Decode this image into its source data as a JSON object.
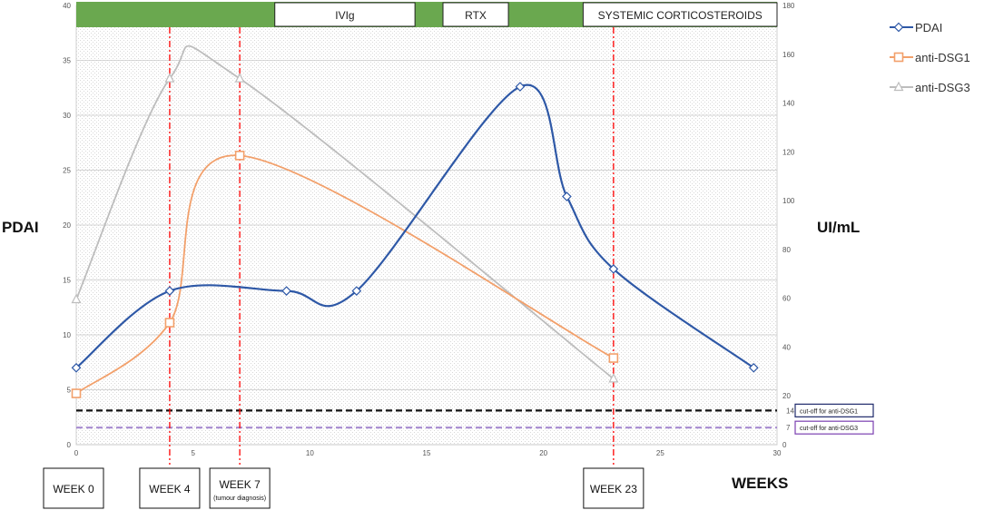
{
  "chart_data": {
    "type": "line",
    "xlabel": "WEEKS",
    "ylabel_left": "PDAI",
    "ylabel_right": "UI/mL",
    "xlim": [
      0,
      30
    ],
    "xticks": [
      0,
      5,
      10,
      15,
      20,
      25,
      30
    ],
    "ylim_left": [
      0,
      40
    ],
    "yticks_left": [
      0,
      5,
      10,
      15,
      20,
      25,
      30,
      35,
      40
    ],
    "ylim_right": [
      0,
      180
    ],
    "yticks_right": [
      0,
      20,
      40,
      60,
      80,
      100,
      120,
      140,
      160,
      180
    ],
    "grid": true,
    "legend_position": "right",
    "series": [
      {
        "name": "PDAI",
        "axis": "left",
        "marker": "diamond",
        "color": "#2e58a6",
        "points": [
          [
            0,
            7
          ],
          [
            4,
            14
          ],
          [
            9,
            14
          ],
          [
            12,
            14
          ],
          [
            19,
            32.6
          ],
          [
            21,
            22.6
          ],
          [
            23,
            16
          ],
          [
            29,
            7
          ]
        ]
      },
      {
        "name": "anti-DSG1",
        "axis": "right",
        "marker": "square",
        "color": "#f2a06b",
        "points": [
          [
            0,
            21
          ],
          [
            4,
            50
          ],
          [
            7,
            118.5
          ],
          [
            23,
            35.5
          ]
        ]
      },
      {
        "name": "anti-DSG3",
        "axis": "right",
        "marker": "triangle",
        "color": "#bdbdbd",
        "points": [
          [
            0,
            59.5
          ],
          [
            4,
            150
          ],
          [
            7,
            150
          ],
          [
            23,
            27
          ]
        ]
      }
    ],
    "cutoffs": [
      {
        "value": 14,
        "label": "cut-off for anti-DSG1",
        "tick": "14",
        "color": "#111111",
        "box_color": "#1f2a6b"
      },
      {
        "value": 7,
        "label": "cut-off for anti-DSG3",
        "tick": "7",
        "color": "#a78bd0",
        "box_color": "#7b3fb0"
      }
    ],
    "week_markers": [
      {
        "x": 0,
        "label": "WEEK 0",
        "sub": "",
        "vline": false
      },
      {
        "x": 4,
        "label": "WEEK 4",
        "sub": "",
        "vline": true
      },
      {
        "x": 7,
        "label": "WEEK 7",
        "sub": "(tumour diagnosis)",
        "vline": true
      },
      {
        "x": 23,
        "label": "WEEK 23",
        "sub": "",
        "vline": true
      }
    ],
    "treatments": [
      {
        "label": "IVIg",
        "from": 8.5,
        "to": 14.5
      },
      {
        "label": "RTX",
        "from": 15.7,
        "to": 18.5
      },
      {
        "label": "SYSTEMIC CORTICOSTEROIDS",
        "from": 21.7,
        "to": 30
      }
    ],
    "treatment_band_color": "#6aa84f",
    "vline_color": "#ff0000"
  }
}
